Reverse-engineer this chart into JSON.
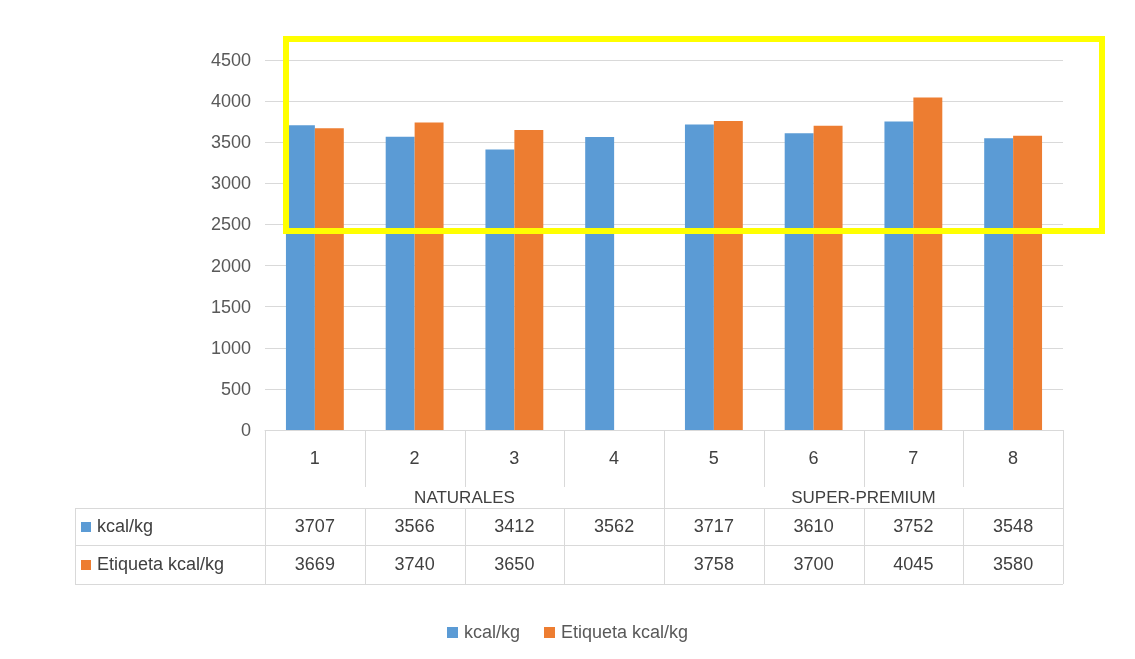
{
  "chart_data": {
    "type": "bar",
    "categories": [
      "1",
      "2",
      "3",
      "4",
      "5",
      "6",
      "7",
      "8"
    ],
    "annotations": [
      "NATURALES",
      "SUPER-PREMIUM"
    ],
    "series": [
      {
        "name": "kcal/kg",
        "color": "#5b9bd5",
        "values": [
          3707,
          3566,
          3412,
          3562,
          3717,
          3610,
          3752,
          3548
        ]
      },
      {
        "name": "Etiqueta kcal/kg",
        "color": "#ed7d31",
        "values": [
          3669,
          3740,
          3650,
          null,
          3758,
          3700,
          4045,
          3580
        ]
      }
    ],
    "ylim": [
      0,
      4500
    ],
    "yticks": [
      0,
      500,
      1000,
      1500,
      2000,
      2500,
      3000,
      3500,
      4000,
      4500
    ],
    "grid": "y",
    "legend": "bottom",
    "data_labels": true
  }
}
